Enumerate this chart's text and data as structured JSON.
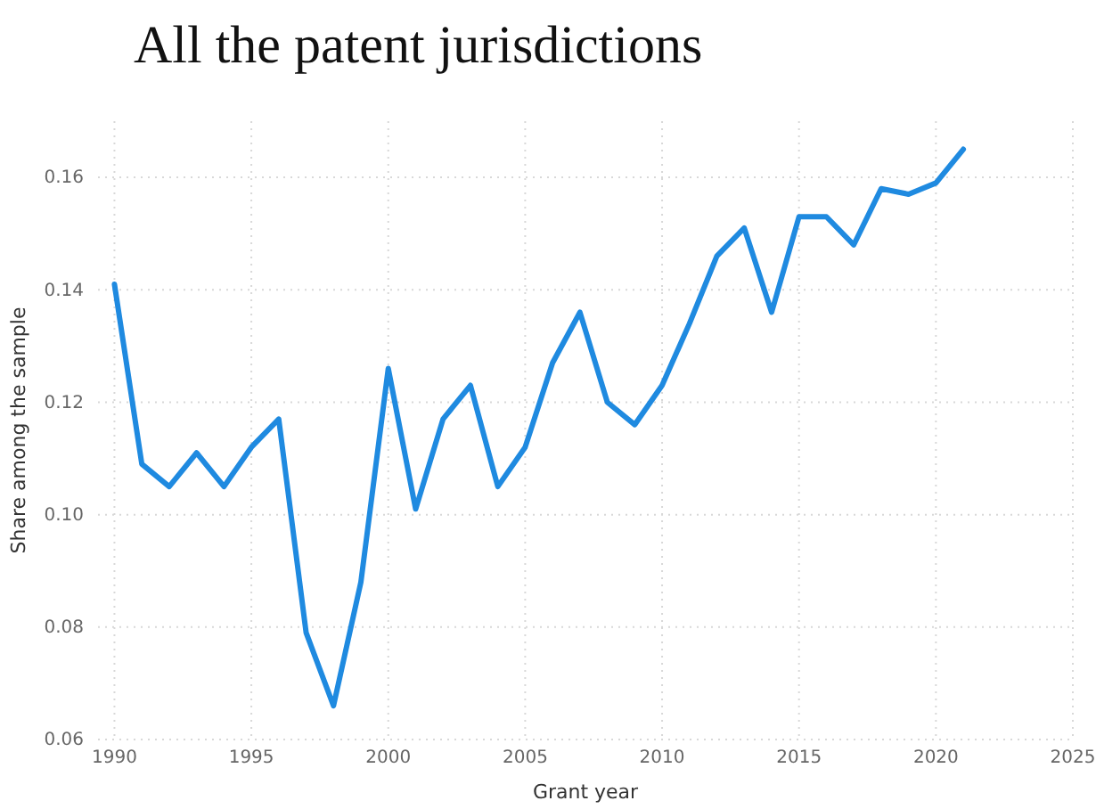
{
  "chart_data": {
    "type": "line",
    "title": "All the patent jurisdictions",
    "xlabel": "Grant year",
    "ylabel": "Share among the sample",
    "x": [
      1990,
      1991,
      1992,
      1993,
      1994,
      1995,
      1996,
      1997,
      1998,
      1999,
      2000,
      2001,
      2002,
      2003,
      2004,
      2005,
      2006,
      2007,
      2008,
      2009,
      2010,
      2011,
      2012,
      2013,
      2014,
      2015,
      2016,
      2017,
      2018,
      2019,
      2020,
      2021
    ],
    "series": [
      {
        "color": "#1f8ae0",
        "values": [
          0.141,
          0.109,
          0.105,
          0.111,
          0.105,
          0.112,
          0.117,
          0.079,
          0.066,
          0.088,
          0.126,
          0.101,
          0.117,
          0.123,
          0.105,
          0.112,
          0.127,
          0.136,
          0.12,
          0.116,
          0.123,
          0.134,
          0.146,
          0.151,
          0.136,
          0.153,
          0.153,
          0.148,
          0.158,
          0.157,
          0.159,
          0.165
        ]
      }
    ],
    "xlim": [
      1989.4,
      2025
    ],
    "ylim": [
      0.06,
      0.17
    ],
    "xticks": [
      1990,
      1995,
      2000,
      2005,
      2010,
      2015,
      2020,
      2025
    ],
    "yticks": [
      {
        "value": 0.06,
        "label": "0.06"
      },
      {
        "value": 0.08,
        "label": "0.08"
      },
      {
        "value": 0.1,
        "label": "0.10"
      },
      {
        "value": 0.12,
        "label": "0.12"
      },
      {
        "value": 0.14,
        "label": "0.14"
      },
      {
        "value": 0.16,
        "label": "0.16"
      }
    ],
    "grid": true,
    "marker": "none",
    "line_style": "solid"
  }
}
